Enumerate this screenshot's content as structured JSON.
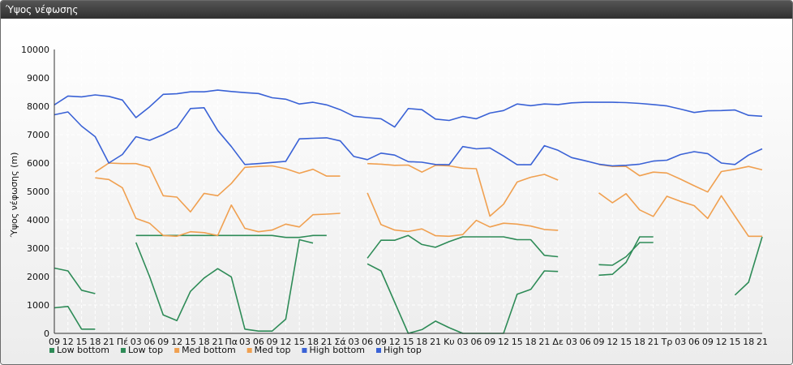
{
  "window": {
    "title": "Ύψος νέφωσης"
  },
  "colors": {
    "low": "#2e8b57",
    "med": "#f0a050",
    "high": "#3a62d6",
    "grid": "#ffffff",
    "axis": "#333333"
  },
  "chart_data": {
    "type": "line",
    "title": "",
    "xlabel": "",
    "ylabel": "Ύψος νέφωσης (m)",
    "ylim": [
      0,
      10000
    ],
    "yticks": [
      0,
      1000,
      2000,
      3000,
      4000,
      5000,
      6000,
      7000,
      8000,
      9000,
      10000
    ],
    "grid": true,
    "legend_position": "bottom-left",
    "categories": [
      "09",
      "12",
      "15",
      "18",
      "21",
      "Πέ",
      "03",
      "06",
      "09",
      "12",
      "15",
      "18",
      "21",
      "Πα",
      "03",
      "06",
      "09",
      "12",
      "15",
      "18",
      "21",
      "Σά",
      "03",
      "06",
      "09",
      "12",
      "15",
      "18",
      "21",
      "Κυ",
      "03",
      "06",
      "09",
      "12",
      "15",
      "18",
      "21",
      "Δε",
      "03",
      "06",
      "09",
      "12",
      "15",
      "18",
      "21",
      "Τρ",
      "03",
      "06",
      "09",
      "12",
      "15",
      "18",
      "21"
    ],
    "series": [
      {
        "name": "Low bottom",
        "color_key": "low",
        "values": [
          900,
          950,
          150,
          150,
          null,
          null,
          3450,
          3450,
          3450,
          3450,
          3450,
          3450,
          3450,
          3450,
          3450,
          3450,
          3450,
          3380,
          3380,
          3450,
          3450,
          null,
          null,
          2650,
          3280,
          3280,
          3450,
          3130,
          3030,
          3230,
          3400,
          3400,
          3400,
          3400,
          3300,
          3300,
          2750,
          2700,
          null,
          null,
          2420,
          2400,
          2700,
          3200,
          3200,
          null,
          null,
          null,
          null,
          null,
          null,
          null,
          null
        ]
      },
      {
        "name": "Low top",
        "color_key": "low",
        "values": [
          2300,
          2200,
          1520,
          1400,
          null,
          null,
          3200,
          2000,
          650,
          450,
          1480,
          1950,
          2280,
          1990,
          150,
          80,
          80,
          500,
          3300,
          3180,
          null,
          null,
          null,
          2450,
          2200,
          1100,
          0,
          130,
          430,
          200,
          0,
          0,
          0,
          0,
          1380,
          1550,
          2200,
          2180,
          null,
          null,
          2050,
          2080,
          2500,
          3400,
          3400,
          null,
          null,
          null,
          null,
          null,
          1350,
          1800,
          3400
        ]
      },
      {
        "name": "Med bottom",
        "color_key": "med",
        "values": [
          null,
          null,
          null,
          5480,
          5420,
          5130,
          4050,
          3880,
          3450,
          3420,
          3580,
          3550,
          3450,
          4520,
          3700,
          3580,
          3640,
          3850,
          3750,
          4180,
          4200,
          4230,
          null,
          4950,
          3830,
          3640,
          3590,
          3680,
          3440,
          3420,
          3480,
          3980,
          3750,
          3880,
          3850,
          3780,
          3660,
          3630,
          null,
          null,
          4950,
          4600,
          4920,
          4350,
          4120,
          4830,
          4650,
          4500,
          4050,
          4850,
          4130,
          3420,
          3420
        ]
      },
      {
        "name": "Med top",
        "color_key": "med",
        "values": [
          null,
          null,
          null,
          5680,
          6000,
          5980,
          5980,
          5850,
          4850,
          4800,
          4280,
          4930,
          4850,
          5280,
          5850,
          5880,
          5900,
          5800,
          5640,
          5780,
          5540,
          5540,
          null,
          5980,
          5960,
          5920,
          5930,
          5680,
          5920,
          5900,
          5820,
          5800,
          4130,
          4550,
          5330,
          5500,
          5600,
          5400,
          null,
          null,
          5950,
          5880,
          5880,
          5550,
          5680,
          5650,
          5430,
          5200,
          4980,
          5700,
          5780,
          5880,
          5760
        ]
      },
      {
        "name": "High bottom",
        "color_key": "high",
        "values": [
          7700,
          7800,
          7300,
          6930,
          6000,
          6300,
          6930,
          6800,
          7000,
          7250,
          7920,
          7950,
          7150,
          6580,
          5950,
          5980,
          6020,
          6060,
          6850,
          6870,
          6890,
          6780,
          6230,
          6120,
          6350,
          6280,
          6050,
          6030,
          5950,
          5940,
          6580,
          6500,
          6530,
          6250,
          5940,
          5940,
          6610,
          6450,
          6190,
          6080,
          5960,
          5900,
          5920,
          5960,
          6070,
          6100,
          6300,
          6400,
          6330,
          6000,
          5950,
          6280,
          6500
        ]
      },
      {
        "name": "High top",
        "color_key": "high",
        "values": [
          8050,
          8360,
          8330,
          8400,
          8350,
          8220,
          7600,
          7980,
          8420,
          8440,
          8510,
          8510,
          8570,
          8520,
          8480,
          8450,
          8300,
          8250,
          8080,
          8140,
          8050,
          7880,
          7650,
          7600,
          7560,
          7270,
          7920,
          7880,
          7550,
          7500,
          7640,
          7560,
          7760,
          7850,
          8080,
          8020,
          8080,
          8060,
          8120,
          8140,
          8140,
          8140,
          8130,
          8100,
          8060,
          8010,
          7900,
          7780,
          7840,
          7850,
          7870,
          7680,
          7650
        ]
      }
    ]
  }
}
